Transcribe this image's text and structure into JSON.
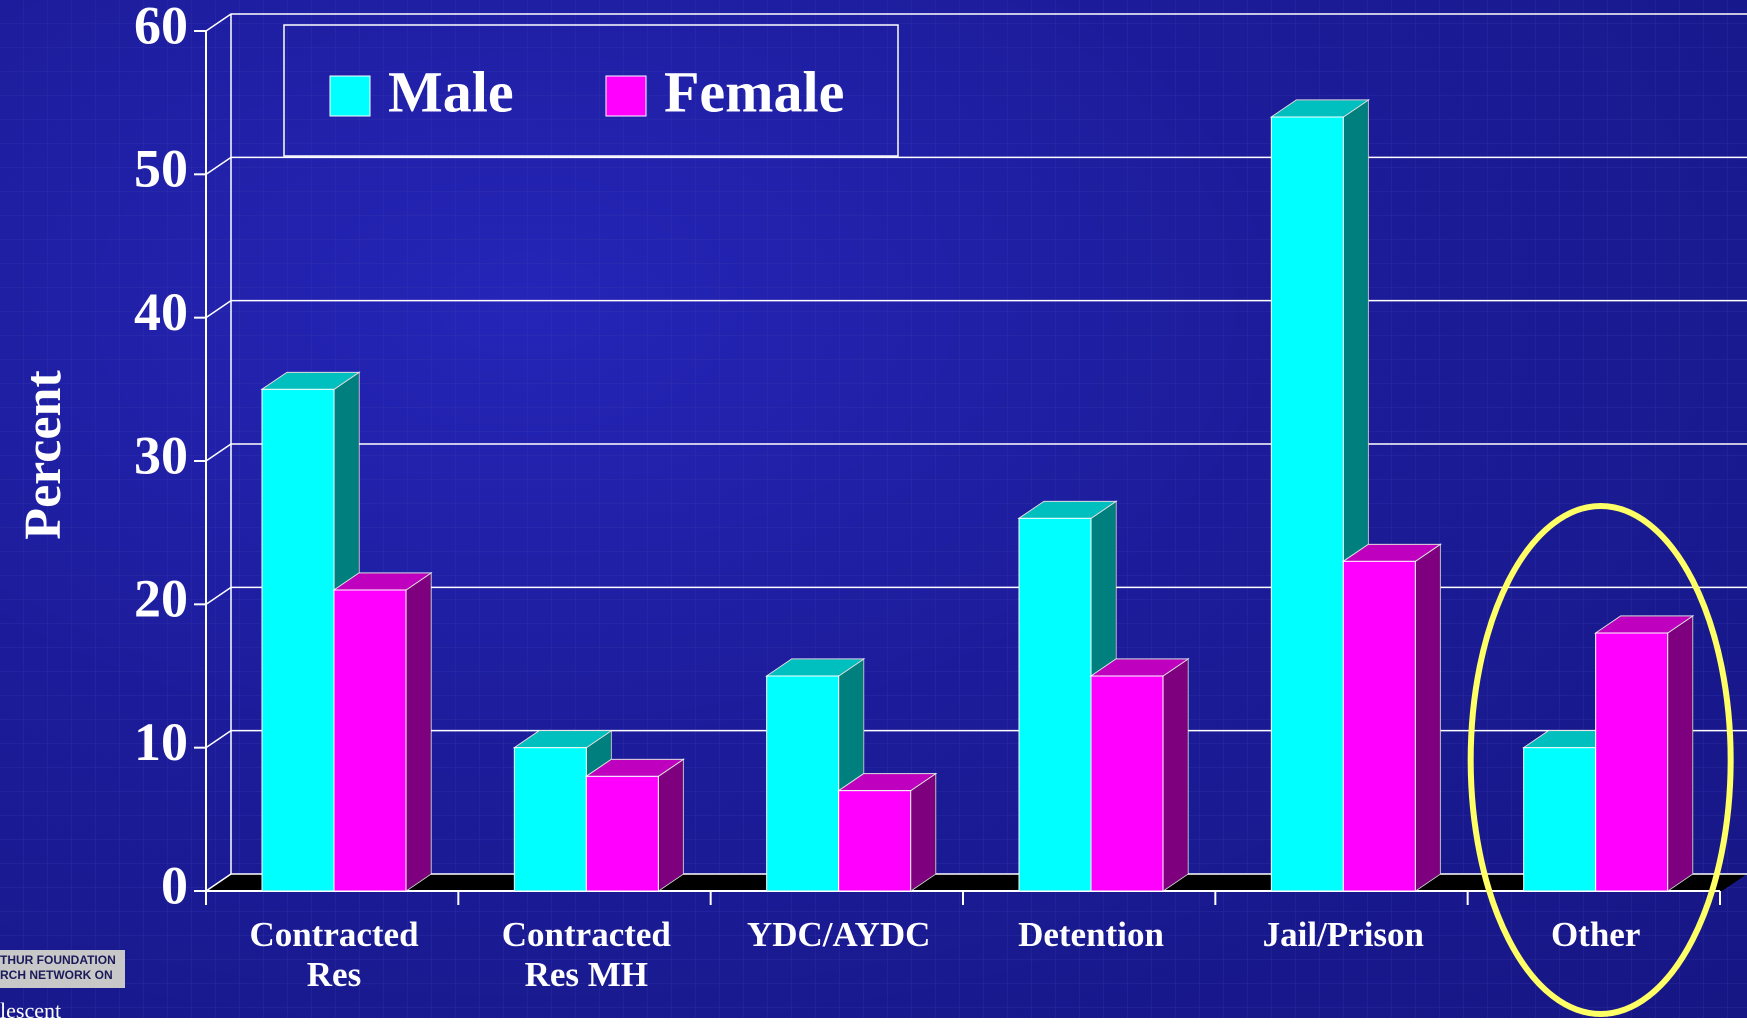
{
  "chart_data": {
    "type": "bar3d",
    "ylabel": "Percent",
    "categories": [
      "Contracted Res",
      "Contracted Res MH",
      "YDC/AYDC",
      "Detention",
      "Jail/Prison",
      "Other"
    ],
    "series": [
      {
        "name": "Male",
        "color": "#00ffff",
        "values": [
          35,
          10,
          15,
          26,
          54,
          10
        ]
      },
      {
        "name": "Female",
        "color": "#ff00ff",
        "values": [
          21,
          8,
          7,
          15,
          23,
          18
        ]
      }
    ],
    "ylim": [
      0,
      60
    ],
    "yticks": [
      0,
      10,
      20,
      30,
      40,
      50,
      60
    ],
    "grid": true,
    "legend": "top-left",
    "highlight_color": "#ffff66",
    "logo_text": [
      "THUR FOUNDATION",
      "RCH NETWORK ON",
      "lescent"
    ]
  }
}
